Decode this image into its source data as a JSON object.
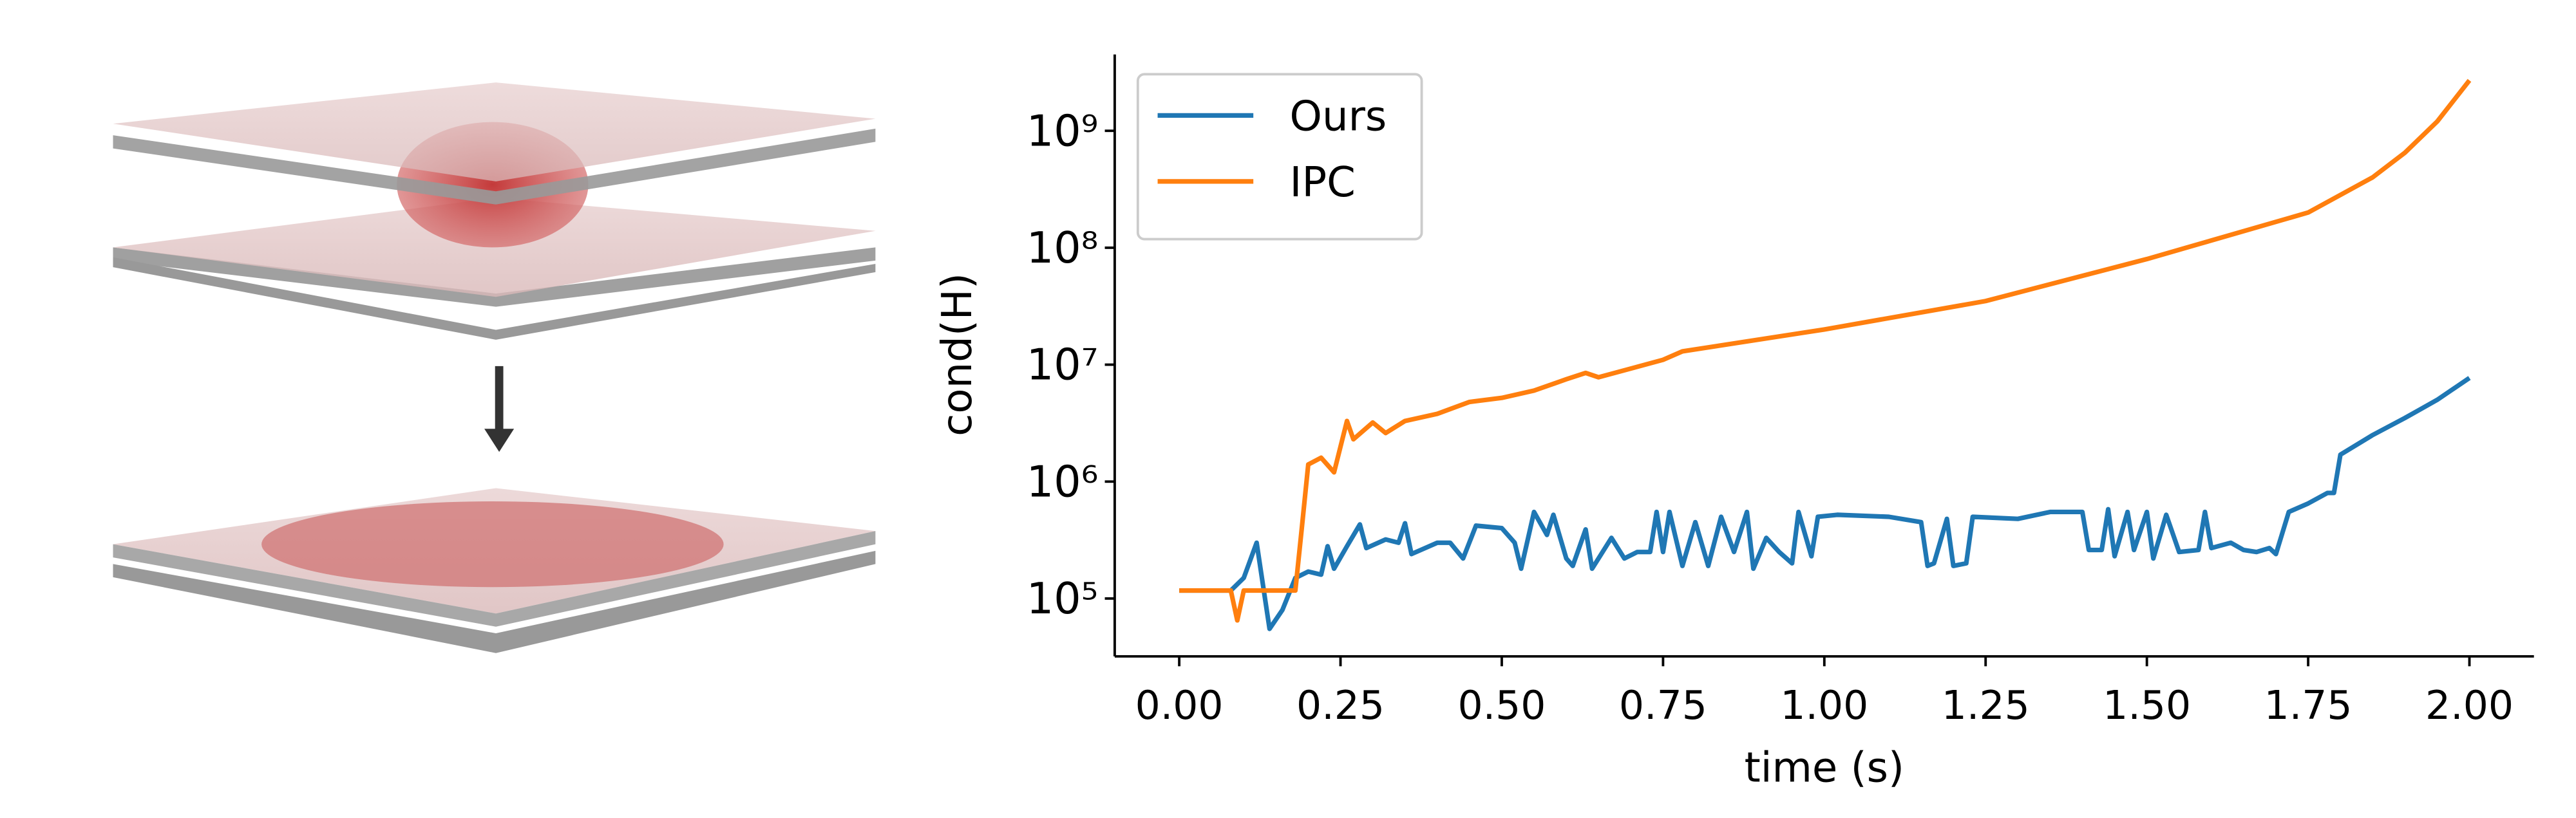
{
  "chart_data": {
    "type": "line",
    "xlabel": "time (s)",
    "ylabel": "cond(H)",
    "log_y": true,
    "legend": "upper left",
    "xlim": [
      -0.1,
      2.1
    ],
    "ylim": [
      32000,
      4500000000
    ],
    "xticks": [
      {
        "value": 0,
        "label": "0.00"
      },
      {
        "value": 0.25,
        "label": "0.25"
      },
      {
        "value": 0.5,
        "label": "0.50"
      },
      {
        "value": 0.75,
        "label": "0.75"
      },
      {
        "value": 1,
        "label": "1.00"
      },
      {
        "value": 1.25,
        "label": "1.25"
      },
      {
        "value": 1.5,
        "label": "1.50"
      },
      {
        "value": 1.75,
        "label": "1.75"
      },
      {
        "value": 2,
        "label": "2.00"
      }
    ],
    "yticks": [
      {
        "value": 100000,
        "label": "10⁵"
      },
      {
        "value": 1000000,
        "label": "10⁶"
      },
      {
        "value": 10000000,
        "label": "10⁷"
      },
      {
        "value": 100000000,
        "label": "10⁸"
      },
      {
        "value": 1000000000,
        "label": "10⁹"
      }
    ],
    "series": [
      {
        "name": "Ours",
        "color": "#1f77b4",
        "x": [
          0,
          0.08,
          0.1,
          0.12,
          0.14,
          0.16,
          0.18,
          0.2,
          0.22,
          0.23,
          0.24,
          0.26,
          0.28,
          0.29,
          0.32,
          0.34,
          0.35,
          0.36,
          0.4,
          0.42,
          0.44,
          0.46,
          0.5,
          0.52,
          0.53,
          0.55,
          0.57,
          0.58,
          0.6,
          0.61,
          0.63,
          0.64,
          0.67,
          0.69,
          0.71,
          0.73,
          0.74,
          0.75,
          0.76,
          0.78,
          0.8,
          0.82,
          0.84,
          0.86,
          0.88,
          0.89,
          0.91,
          0.93,
          0.95,
          0.96,
          0.98,
          0.99,
          1.02,
          1.1,
          1.15,
          1.16,
          1.17,
          1.19,
          1.2,
          1.22,
          1.23,
          1.3,
          1.35,
          1.4,
          1.41,
          1.43,
          1.44,
          1.45,
          1.47,
          1.48,
          1.5,
          1.51,
          1.53,
          1.55,
          1.58,
          1.59,
          1.6,
          1.63,
          1.65,
          1.67,
          1.69,
          1.7,
          1.72,
          1.75,
          1.78,
          1.79,
          1.8,
          1.85,
          1.9,
          1.95,
          2.0
        ],
        "values": [
          117000,
          117000,
          150000,
          300000,
          55000,
          80000,
          150000,
          170000,
          160000,
          280000,
          180000,
          280000,
          430000,
          270000,
          320000,
          300000,
          440000,
          240000,
          300000,
          300000,
          220000,
          420000,
          400000,
          300000,
          180000,
          550000,
          350000,
          520000,
          220000,
          190000,
          390000,
          180000,
          330000,
          220000,
          250000,
          250000,
          550000,
          250000,
          550000,
          190000,
          450000,
          190000,
          500000,
          250000,
          550000,
          180000,
          330000,
          250000,
          200000,
          550000,
          230000,
          500000,
          520000,
          500000,
          450000,
          190000,
          200000,
          480000,
          190000,
          200000,
          500000,
          480000,
          550000,
          550000,
          260000,
          260000,
          580000,
          230000,
          550000,
          260000,
          550000,
          220000,
          520000,
          250000,
          260000,
          550000,
          270000,
          300000,
          260000,
          250000,
          270000,
          240000,
          550000,
          650000,
          800000,
          800000,
          1700000,
          2500000,
          3500000,
          5000000,
          7700000
        ]
      },
      {
        "name": "IPC",
        "color": "#ff7f0e",
        "x": [
          0,
          0.08,
          0.09,
          0.1,
          0.18,
          0.19,
          0.2,
          0.22,
          0.24,
          0.26,
          0.27,
          0.3,
          0.32,
          0.35,
          0.4,
          0.45,
          0.5,
          0.55,
          0.6,
          0.63,
          0.65,
          0.75,
          0.78,
          1.0,
          1.25,
          1.5,
          1.75,
          1.85,
          1.9,
          1.95,
          2.0
        ],
        "values": [
          117000,
          117000,
          65000,
          117000,
          117000,
          400000,
          1400000,
          1600000,
          1200000,
          3300000,
          2300000,
          3200000,
          2600000,
          3300000,
          3800000,
          4800000,
          5200000,
          6000000,
          7500000,
          8500000,
          7800000,
          11000000,
          13000000,
          20000000,
          35000000,
          80000000,
          200000000,
          400000000,
          650000000,
          1200000000,
          2700000000
        ]
      }
    ]
  }
}
